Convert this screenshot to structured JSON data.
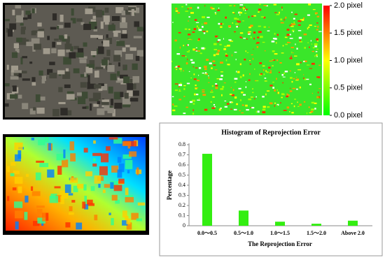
{
  "chart_data": {
    "type": "bar",
    "title": "Histogram of Reprojection Error",
    "x_label": "The Reprojection Error",
    "y_label": "Percentage",
    "categories": [
      "0.0～0.5",
      "0.5～1.0",
      "1.0～1.5",
      "1.5～2.0",
      "Above 2.0"
    ],
    "values": [
      0.71,
      0.15,
      0.04,
      0.02,
      0.05
    ],
    "color": "#33ee11",
    "ylim": [
      0,
      0.8
    ],
    "yticks": [
      0,
      0.1,
      0.2,
      0.3,
      0.4,
      0.5,
      0.6,
      0.7,
      0.8
    ],
    "grid": false
  },
  "error_map": {
    "clim": [
      0,
      2
    ],
    "colorbar_ticks": [
      {
        "value": 2.0,
        "label": "2.0 pixel"
      },
      {
        "value": 1.5,
        "label": "1.5 pixel"
      },
      {
        "value": 1.0,
        "label": "1.0 pixel"
      },
      {
        "value": 0.5,
        "label": "0.5 pixel"
      },
      {
        "value": 0.0,
        "label": "0.0 pixel"
      }
    ]
  }
}
